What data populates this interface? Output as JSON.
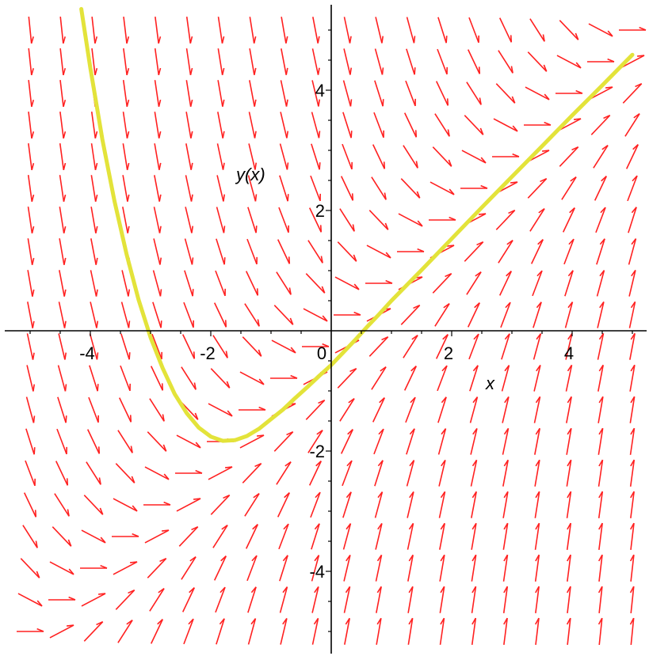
{
  "chart_data": {
    "type": "direction-field",
    "xlabel": "x",
    "ylabel": "y(x)",
    "xlim": [
      -5.2,
      5.4
    ],
    "ylim": [
      -5.4,
      5.4
    ],
    "x_ticks": [
      -4,
      -2,
      0,
      2,
      4
    ],
    "x_tick_labels": [
      "-4",
      "-2",
      "0",
      "2",
      "4"
    ],
    "y_ticks": [
      -4,
      -2,
      2,
      4
    ],
    "y_tick_labels": [
      "-4",
      "-2",
      "2",
      "4"
    ],
    "grid": false,
    "slope_field": {
      "x_range": [
        -5.0,
        5.0
      ],
      "y_range": [
        -5.0,
        5.0
      ],
      "count": 20,
      "slope_expression": "x - y"
    },
    "series": [
      {
        "x": [
          -4.15,
          -4.0,
          -3.8,
          -3.6,
          -3.4,
          -3.2,
          -3.0,
          -2.8,
          -2.6,
          -2.4,
          -2.2,
          -2.0,
          -1.8,
          -1.6,
          -1.4,
          -1.2,
          -1.0,
          -0.8,
          -0.6,
          -0.4,
          -0.2,
          0.0,
          0.2,
          0.4,
          0.6,
          0.8,
          1.0,
          1.5,
          2.0,
          2.5,
          3.0,
          3.5,
          4.0,
          4.5,
          5.0
        ],
        "y": [
          5.35,
          4.37,
          3.18,
          2.16,
          1.28,
          0.52,
          -0.11,
          -0.62,
          -1.05,
          -1.37,
          -1.61,
          -1.76,
          -1.83,
          -1.82,
          -1.75,
          -1.63,
          -1.47,
          -1.31,
          -1.12,
          -0.94,
          -0.75,
          -0.57,
          -0.36,
          -0.15,
          0.07,
          0.28,
          0.5,
          1.01,
          1.53,
          2.05,
          2.56,
          3.07,
          3.58,
          4.08,
          4.59
        ],
        "color": "#e3e33a"
      }
    ],
    "colors": {
      "arrows": "#ff2020",
      "curve": "#e3e33a",
      "axes": "#000000"
    }
  }
}
